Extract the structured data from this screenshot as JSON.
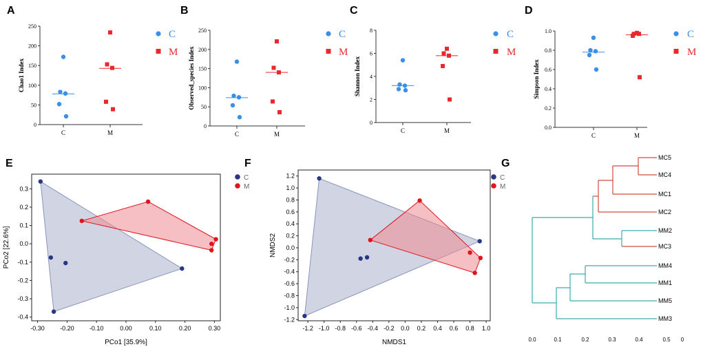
{
  "colors": {
    "C": "#3a8fe8",
    "M": "#e8282d",
    "C_dark": "#283684",
    "M_dark": "#e1141c",
    "C_fill": "#8a94b8",
    "M_fill": "#ee8a92",
    "tree_red": "#d24a3c",
    "tree_teal": "#3aaab0"
  },
  "chart_data": [
    {
      "panel": "A",
      "type": "scatter",
      "ylabel": "Chao1 Index",
      "ylim": [
        0,
        250
      ],
      "yticks": [
        0,
        50,
        100,
        150,
        200,
        250
      ],
      "categories": [
        "C",
        "M"
      ],
      "legend": [
        "C",
        "M"
      ],
      "series": [
        {
          "name": "C",
          "points": [
            172,
            83,
            79,
            52,
            21
          ],
          "median": 78
        },
        {
          "name": "M",
          "points": [
            234,
            153,
            144,
            58,
            39
          ],
          "median": 143
        }
      ]
    },
    {
      "panel": "B",
      "type": "scatter",
      "ylabel": "Observed_species Index",
      "ylim": [
        0,
        250
      ],
      "yticks": [
        0,
        50,
        100,
        150,
        200,
        250
      ],
      "categories": [
        "C",
        "M"
      ],
      "legend": [
        "C",
        "M"
      ],
      "series": [
        {
          "name": "C",
          "points": [
            168,
            79,
            75,
            54,
            23
          ],
          "median": 74
        },
        {
          "name": "M",
          "points": [
            221,
            152,
            140,
            64,
            36
          ],
          "median": 140
        }
      ]
    },
    {
      "panel": "C",
      "type": "scatter",
      "ylabel": "Shannon Index",
      "ylim": [
        0,
        8
      ],
      "yticks": [
        0,
        2,
        4,
        6,
        8
      ],
      "categories": [
        "C",
        "M"
      ],
      "legend": [
        "C",
        "M"
      ],
      "series": [
        {
          "name": "C",
          "points": [
            5.4,
            3.3,
            3.2,
            2.9,
            2.8
          ],
          "median": 3.2
        },
        {
          "name": "M",
          "points": [
            6.4,
            6.0,
            5.8,
            4.9,
            2.0
          ],
          "median": 5.8
        }
      ]
    },
    {
      "panel": "D",
      "type": "scatter",
      "ylabel": "Simpson Index",
      "ylim": [
        0,
        1.0
      ],
      "yticks": [
        "0.0",
        "0.2",
        "0.4",
        "0.6",
        "0.8",
        "1.0"
      ],
      "categories": [
        "C",
        "M"
      ],
      "legend": [
        "C",
        "M"
      ],
      "series": [
        {
          "name": "C",
          "points": [
            0.93,
            0.8,
            0.79,
            0.75,
            0.6
          ],
          "median": 0.78
        },
        {
          "name": "M",
          "points": [
            0.98,
            0.97,
            0.97,
            0.95,
            0.52
          ],
          "median": 0.96
        }
      ]
    },
    {
      "panel": "E",
      "type": "scatter",
      "xlabel": "PCo1 [35.9%]",
      "ylabel": "PCo2 [22.6%]",
      "xlim": [
        -0.32,
        0.32
      ],
      "ylim": [
        -0.42,
        0.38
      ],
      "xticks": [
        "-0.30",
        "-0.20",
        "-0.10",
        "0.00",
        "0.10",
        "0.20",
        "0.30"
      ],
      "yticks": [
        "-0.4",
        "-0.3",
        "-0.2",
        "-0.1",
        "0.0",
        "0.1",
        "0.2",
        "0.3"
      ],
      "legend": [
        "C",
        "M"
      ],
      "series": [
        {
          "name": "C",
          "points": [
            [
              -0.29,
              0.34
            ],
            [
              0.19,
              -0.135
            ],
            [
              -0.245,
              -0.37
            ],
            [
              -0.255,
              -0.075
            ],
            [
              -0.205,
              -0.105
            ]
          ],
          "hull": [
            0,
            1,
            2
          ]
        },
        {
          "name": "M",
          "points": [
            [
              -0.15,
              0.125
            ],
            [
              0.075,
              0.23
            ],
            [
              0.305,
              0.025
            ],
            [
              0.29,
              0.0
            ],
            [
              0.29,
              -0.035
            ]
          ],
          "hull": [
            0,
            1,
            2,
            4
          ]
        }
      ]
    },
    {
      "panel": "F",
      "type": "scatter",
      "xlabel": "NMDS1",
      "ylabel": "NMDS2",
      "xlim": [
        -1.32,
        1.05
      ],
      "ylim": [
        -1.22,
        1.3
      ],
      "xticks": [
        "-1.2",
        "-1.0",
        "-0.8",
        "-0.6",
        "-0.4",
        "-0.2",
        "0.0",
        "0.2",
        "0.4",
        "0.6",
        "0.8",
        "1.0"
      ],
      "yticks": [
        "-1.2",
        "-1.0",
        "-0.8",
        "-0.6",
        "-0.4",
        "-0.2",
        "0.0",
        "0.2",
        "0.4",
        "0.6",
        "0.8",
        "1.0",
        "1.2"
      ],
      "legend": [
        "C",
        "M"
      ],
      "series": [
        {
          "name": "C",
          "points": [
            [
              -1.06,
              1.16
            ],
            [
              0.92,
              0.11
            ],
            [
              -1.24,
              -1.14
            ],
            [
              -0.55,
              -0.18
            ],
            [
              -0.47,
              -0.16
            ]
          ],
          "hull": [
            0,
            1,
            2
          ]
        },
        {
          "name": "M",
          "points": [
            [
              -0.43,
              0.13
            ],
            [
              0.18,
              0.79
            ],
            [
              0.93,
              -0.17
            ],
            [
              0.8,
              -0.08
            ],
            [
              0.86,
              -0.42
            ]
          ],
          "hull": [
            0,
            1,
            2,
            4
          ]
        }
      ]
    },
    {
      "panel": "G",
      "type": "dendrogram",
      "xticks": [
        "0.0",
        "0.1",
        "0.2",
        "0.3",
        "0.4",
        "0.5",
        "0"
      ],
      "leaves": [
        "MC5",
        "MC4",
        "MC1",
        "MC2",
        "MM2",
        "MC3",
        "MM4",
        "MM1",
        "MM5",
        "MM3"
      ]
    }
  ]
}
